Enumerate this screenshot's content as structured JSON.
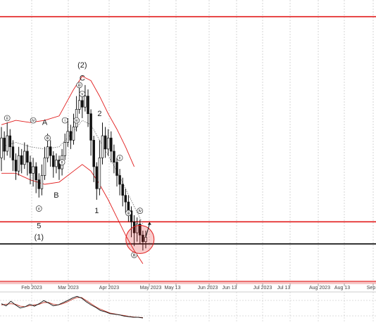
{
  "chart_data": {
    "type": "candlestick",
    "x_tick_labels": [
      "Feb 2023",
      "Mar 2023",
      "Apr 2023",
      "May 2023",
      "May 13",
      "Jun 2023",
      "Jun 13",
      "Jul 2023",
      "Jul 13",
      "Aug 2023",
      "Aug 13",
      "Sep"
    ],
    "price_bars": [
      {
        "i": 0,
        "o": 96,
        "c": 105,
        "h": 110,
        "l": 90
      },
      {
        "i": 1,
        "o": 105,
        "c": 99,
        "h": 108,
        "l": 95
      },
      {
        "i": 2,
        "o": 99,
        "c": 106,
        "h": 112,
        "l": 97
      },
      {
        "i": 3,
        "o": 106,
        "c": 101,
        "h": 109,
        "l": 96
      },
      {
        "i": 4,
        "o": 101,
        "c": 95,
        "h": 104,
        "l": 90
      },
      {
        "i": 5,
        "o": 95,
        "c": 90,
        "h": 98,
        "l": 86
      },
      {
        "i": 6,
        "o": 90,
        "c": 97,
        "h": 101,
        "l": 88
      },
      {
        "i": 7,
        "o": 97,
        "c": 93,
        "h": 100,
        "l": 89
      },
      {
        "i": 8,
        "o": 93,
        "c": 99,
        "h": 103,
        "l": 91
      },
      {
        "i": 9,
        "o": 99,
        "c": 94,
        "h": 102,
        "l": 88
      },
      {
        "i": 10,
        "o": 94,
        "c": 89,
        "h": 97,
        "l": 84
      },
      {
        "i": 11,
        "o": 89,
        "c": 92,
        "h": 96,
        "l": 83
      },
      {
        "i": 12,
        "o": 92,
        "c": 86,
        "h": 94,
        "l": 80
      },
      {
        "i": 13,
        "o": 86,
        "c": 82,
        "h": 89,
        "l": 78
      },
      {
        "i": 14,
        "o": 82,
        "c": 88,
        "h": 93,
        "l": 79
      },
      {
        "i": 15,
        "o": 88,
        "c": 96,
        "h": 101,
        "l": 86
      },
      {
        "i": 16,
        "o": 96,
        "c": 101,
        "h": 107,
        "l": 94
      },
      {
        "i": 17,
        "o": 101,
        "c": 97,
        "h": 104,
        "l": 92
      },
      {
        "i": 18,
        "o": 97,
        "c": 92,
        "h": 99,
        "l": 87
      },
      {
        "i": 19,
        "o": 92,
        "c": 95,
        "h": 98,
        "l": 89
      },
      {
        "i": 20,
        "o": 95,
        "c": 91,
        "h": 97,
        "l": 86
      },
      {
        "i": 21,
        "o": 91,
        "c": 97,
        "h": 100,
        "l": 88
      },
      {
        "i": 22,
        "o": 97,
        "c": 103,
        "h": 107,
        "l": 95
      },
      {
        "i": 23,
        "o": 103,
        "c": 108,
        "h": 114,
        "l": 101
      },
      {
        "i": 24,
        "o": 108,
        "c": 104,
        "h": 111,
        "l": 100
      },
      {
        "i": 25,
        "o": 104,
        "c": 110,
        "h": 116,
        "l": 102
      },
      {
        "i": 26,
        "o": 110,
        "c": 118,
        "h": 124,
        "l": 108
      },
      {
        "i": 27,
        "o": 118,
        "c": 122,
        "h": 128,
        "l": 116
      },
      {
        "i": 28,
        "o": 122,
        "c": 119,
        "h": 126,
        "l": 114
      },
      {
        "i": 29,
        "o": 119,
        "c": 124,
        "h": 129,
        "l": 117
      },
      {
        "i": 30,
        "o": 124,
        "c": 116,
        "h": 127,
        "l": 110
      },
      {
        "i": 31,
        "o": 116,
        "c": 104,
        "h": 118,
        "l": 97
      },
      {
        "i": 32,
        "o": 104,
        "c": 92,
        "h": 106,
        "l": 85
      },
      {
        "i": 33,
        "o": 92,
        "c": 82,
        "h": 94,
        "l": 77
      },
      {
        "i": 34,
        "o": 82,
        "c": 96,
        "h": 104,
        "l": 79
      },
      {
        "i": 35,
        "o": 96,
        "c": 106,
        "h": 112,
        "l": 93
      },
      {
        "i": 36,
        "o": 106,
        "c": 100,
        "h": 110,
        "l": 96
      },
      {
        "i": 37,
        "o": 100,
        "c": 105,
        "h": 109,
        "l": 97
      },
      {
        "i": 38,
        "o": 105,
        "c": 99,
        "h": 108,
        "l": 94
      },
      {
        "i": 39,
        "o": 99,
        "c": 94,
        "h": 102,
        "l": 89
      },
      {
        "i": 40,
        "o": 94,
        "c": 88,
        "h": 96,
        "l": 83
      },
      {
        "i": 41,
        "o": 88,
        "c": 84,
        "h": 91,
        "l": 79
      },
      {
        "i": 42,
        "o": 84,
        "c": 79,
        "h": 87,
        "l": 74
      },
      {
        "i": 43,
        "o": 79,
        "c": 76,
        "h": 82,
        "l": 71
      },
      {
        "i": 44,
        "o": 76,
        "c": 72,
        "h": 79,
        "l": 67
      },
      {
        "i": 45,
        "o": 72,
        "c": 67,
        "h": 74,
        "l": 60
      },
      {
        "i": 46,
        "o": 67,
        "c": 62,
        "h": 70,
        "l": 56
      },
      {
        "i": 47,
        "o": 62,
        "c": 66,
        "h": 69,
        "l": 58
      },
      {
        "i": 48,
        "o": 66,
        "c": 61,
        "h": 68,
        "l": 57
      },
      {
        "i": 49,
        "o": 61,
        "c": 58,
        "h": 63,
        "l": 54
      },
      {
        "i": 50,
        "o": 58,
        "c": 60,
        "h": 63,
        "l": 55
      }
    ],
    "upper_band": [
      [
        0,
        111
      ],
      [
        5,
        113
      ],
      [
        10,
        112
      ],
      [
        15,
        113
      ],
      [
        20,
        115
      ],
      [
        25,
        127
      ],
      [
        28,
        133
      ],
      [
        31,
        131
      ],
      [
        34,
        124
      ],
      [
        37,
        116
      ],
      [
        40,
        109
      ],
      [
        43,
        101
      ],
      [
        46,
        92
      ]
    ],
    "middle_band": [
      [
        0,
        101
      ],
      [
        5,
        103
      ],
      [
        10,
        101
      ],
      [
        15,
        100
      ],
      [
        20,
        101
      ],
      [
        25,
        108
      ],
      [
        28,
        113
      ],
      [
        31,
        111
      ],
      [
        34,
        104
      ],
      [
        37,
        97
      ],
      [
        40,
        90
      ],
      [
        43,
        82
      ],
      [
        46,
        74
      ],
      [
        49,
        66
      ]
    ],
    "lower_band": [
      [
        0,
        89
      ],
      [
        5,
        89
      ],
      [
        10,
        86
      ],
      [
        15,
        84
      ],
      [
        20,
        85
      ],
      [
        25,
        90
      ],
      [
        28,
        93
      ],
      [
        31,
        90
      ],
      [
        34,
        84
      ],
      [
        37,
        77
      ],
      [
        40,
        69
      ],
      [
        43,
        61
      ],
      [
        46,
        54
      ],
      [
        49,
        48
      ]
    ],
    "horizontal_levels": [
      {
        "name": "upper-resistance",
        "value": 160,
        "color": "#e11b1b"
      },
      {
        "name": "lower-resistance",
        "value": 67,
        "color": "#e11b1b"
      },
      {
        "name": "support",
        "value": 57,
        "color": "#000000"
      }
    ],
    "wave_labels": [
      {
        "text": "(2)",
        "i": 28,
        "v": 137
      },
      {
        "text": "C",
        "i": 28,
        "v": 131
      },
      {
        "text": "A",
        "i": 15,
        "v": 111
      },
      {
        "text": "B",
        "i": 19,
        "v": 78
      },
      {
        "text": "2",
        "i": 34,
        "v": 115
      },
      {
        "text": "1",
        "i": 33,
        "v": 71
      },
      {
        "text": "5",
        "i": 13,
        "v": 64
      },
      {
        "text": "(1)",
        "i": 13,
        "v": 59
      }
    ],
    "wave_circle_labels": [
      {
        "text": "iii",
        "i": 27,
        "v": 129
      },
      {
        "text": "v",
        "i": 28,
        "v": 125
      },
      {
        "text": "iv",
        "i": 26,
        "v": 113
      },
      {
        "text": "ii",
        "i": 2,
        "v": 114
      },
      {
        "text": "iv",
        "i": 11,
        "v": 113
      },
      {
        "text": "i",
        "i": 22,
        "v": 113
      },
      {
        "text": "iii",
        "i": 16,
        "v": 105
      },
      {
        "text": "v",
        "i": 13,
        "v": 73
      },
      {
        "text": "ii",
        "i": 21,
        "v": 94
      },
      {
        "text": "ii",
        "i": 41,
        "v": 96
      },
      {
        "text": "iii",
        "i": 44,
        "v": 71
      },
      {
        "text": "iv",
        "i": 48,
        "v": 72
      },
      {
        "text": "iii",
        "i": 46,
        "v": 52
      }
    ],
    "oscillator": {
      "k": [
        62,
        55,
        70,
        58,
        48,
        52,
        60,
        54,
        62,
        72,
        64,
        55,
        58,
        65,
        72,
        80,
        86,
        80,
        68,
        58,
        50,
        40,
        36,
        30,
        28,
        26,
        22,
        20,
        18,
        18,
        16
      ],
      "d": [
        58,
        60,
        62,
        60,
        54,
        52,
        56,
        58,
        60,
        66,
        66,
        60,
        58,
        62,
        68,
        76,
        82,
        82,
        72,
        62,
        52,
        44,
        38,
        32,
        29,
        26,
        24,
        21,
        19,
        18,
        17
      ]
    },
    "colors": {
      "bars": "#111111",
      "bands": "#e11b1b",
      "middle": "#777777",
      "grid": "#bbbbbb",
      "target": "#e11b1b"
    }
  }
}
